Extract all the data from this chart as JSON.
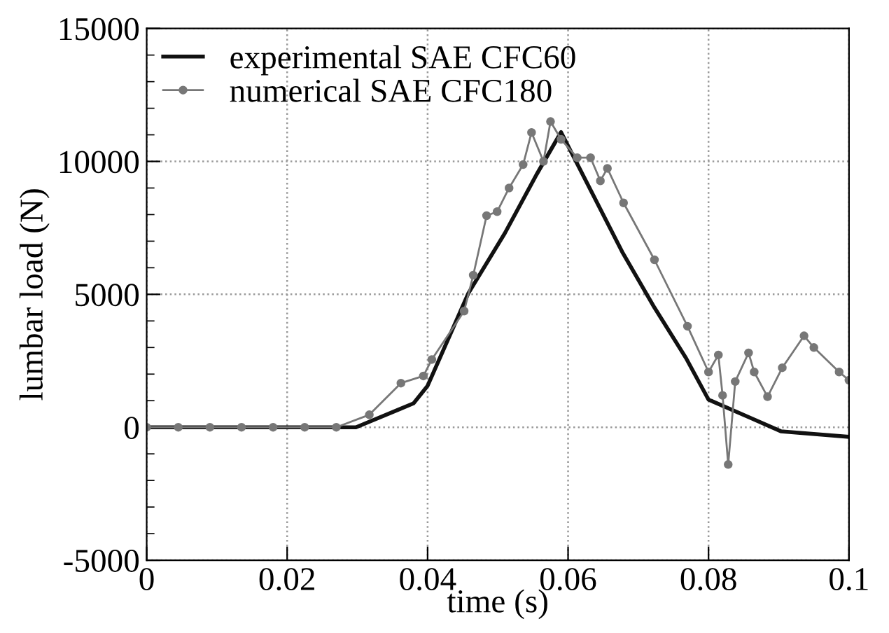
{
  "chart_data": {
    "type": "line",
    "xlabel": "time (s)",
    "ylabel": "lumbar load (N)",
    "xlim": [
      0,
      0.1
    ],
    "xticks": [
      {
        "value": 0,
        "label": "0"
      },
      0.02,
      0.04,
      0.06,
      0.08,
      0.1
    ],
    "ylim": [
      -5000,
      15000
    ],
    "yticks": [
      -5000,
      0,
      5000,
      10000,
      15000
    ],
    "grid": true,
    "legend": "top left",
    "series": [
      {
        "name": "experimental SAE CFC60",
        "color": "#111111",
        "marker": "none",
        "line_style": "solid",
        "x": [
          0,
          0.01,
          0.02,
          0.025,
          0.0298,
          0.036,
          0.038,
          0.04,
          0.0458,
          0.051,
          0.0555,
          0.059,
          0.0677,
          0.0723,
          0.0768,
          0.08,
          0.0859,
          0.0903,
          0.1
        ],
        "values": [
          0,
          0,
          0,
          0,
          0,
          680,
          900,
          1560,
          5040,
          7300,
          9500,
          11100,
          6600,
          4500,
          2600,
          1040,
          360,
          -150,
          -360
        ]
      },
      {
        "name": "numerical SAE CFC180",
        "color": "#777777",
        "marker": "circle",
        "line_style": "solid",
        "x": [
          0,
          0.0045,
          0.009,
          0.0135,
          0.018,
          0.0225,
          0.027,
          0.0317,
          0.0362,
          0.0394,
          0.0406,
          0.0452,
          0.0465,
          0.0484,
          0.0499,
          0.0516,
          0.0536,
          0.0548,
          0.0565,
          0.0575,
          0.059,
          0.0613,
          0.0632,
          0.0646,
          0.0656,
          0.0679,
          0.0723,
          0.077,
          0.08,
          0.0814,
          0.082,
          0.0828,
          0.0838,
          0.0857,
          0.0865,
          0.0884,
          0.0905,
          0.0936,
          0.095,
          0.0986,
          0.1
        ],
        "values": [
          0,
          0,
          0,
          0,
          0,
          0,
          0,
          470,
          1660,
          1930,
          2550,
          4370,
          5720,
          7960,
          8110,
          9000,
          9880,
          11090,
          10000,
          11500,
          10830,
          10140,
          10140,
          9270,
          9740,
          8440,
          6300,
          3800,
          2080,
          2720,
          1200,
          -1400,
          1720,
          2800,
          2080,
          1150,
          2240,
          3440,
          3000,
          2080,
          1770
        ]
      }
    ]
  }
}
